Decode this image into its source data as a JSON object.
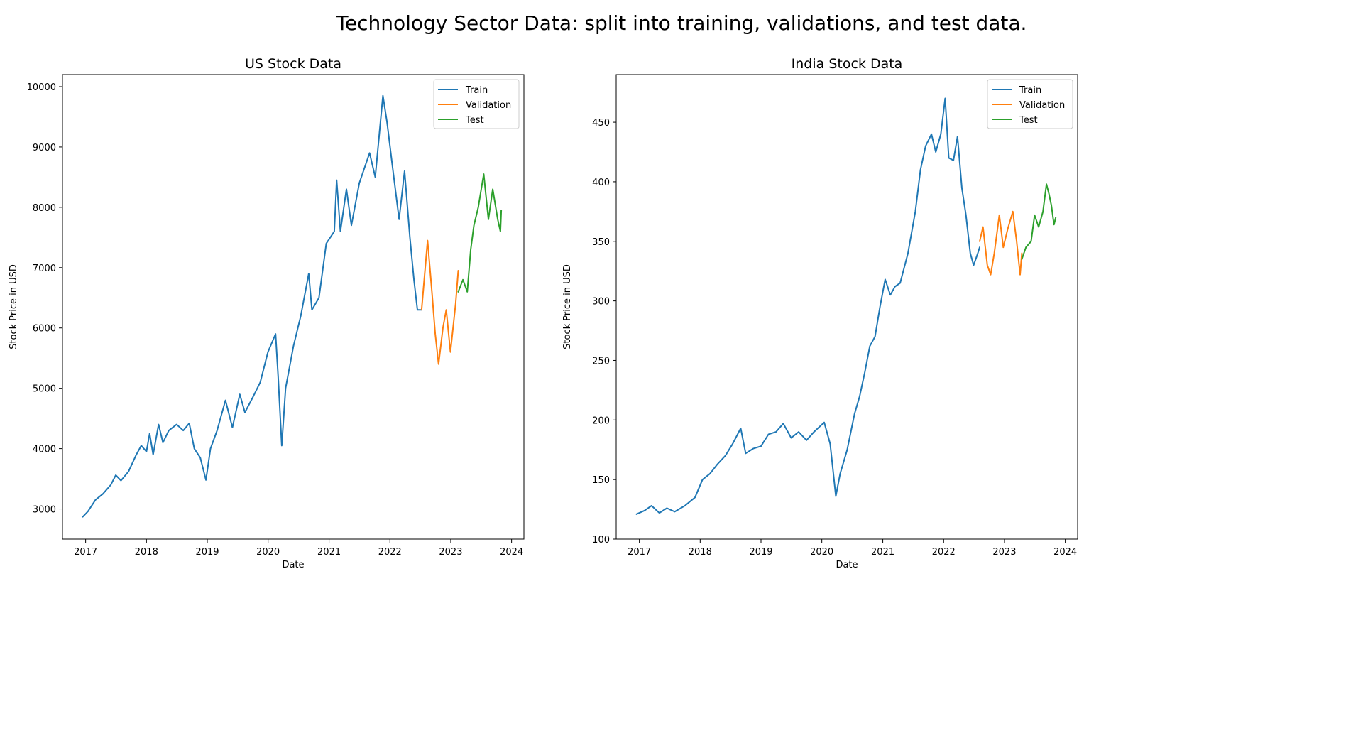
{
  "figure": {
    "title": "Technology Sector Data: split into training, validations, and test data."
  },
  "colors": {
    "Train": "#1f77b4",
    "Validation": "#ff7f0e",
    "Test": "#2ca02c"
  },
  "chart_data": [
    {
      "type": "line",
      "title": "US Stock Data",
      "xlabel": "Date",
      "ylabel": "Stock Price in USD",
      "xlim": [
        "2016-08-15",
        "2024-03-15"
      ],
      "ylim": [
        2500,
        10200
      ],
      "xticks": [
        "2017",
        "2018",
        "2019",
        "2020",
        "2021",
        "2022",
        "2023",
        "2024"
      ],
      "yticks": [
        3000,
        4000,
        5000,
        6000,
        7000,
        8000,
        9000,
        10000
      ],
      "grid": false,
      "legend": "top-right",
      "series": [
        {
          "name": "Train",
          "points": [
            [
              "2016-12-15",
              2870
            ],
            [
              "2017-01-15",
              2960
            ],
            [
              "2017-03-01",
              3150
            ],
            [
              "2017-04-15",
              3250
            ],
            [
              "2017-06-01",
              3400
            ],
            [
              "2017-07-01",
              3560
            ],
            [
              "2017-08-01",
              3470
            ],
            [
              "2017-09-15",
              3620
            ],
            [
              "2017-11-01",
              3900
            ],
            [
              "2017-12-01",
              4050
            ],
            [
              "2018-01-01",
              3950
            ],
            [
              "2018-01-20",
              4250
            ],
            [
              "2018-02-10",
              3900
            ],
            [
              "2018-03-15",
              4400
            ],
            [
              "2018-04-10",
              4100
            ],
            [
              "2018-05-15",
              4300
            ],
            [
              "2018-07-01",
              4400
            ],
            [
              "2018-08-10",
              4300
            ],
            [
              "2018-09-15",
              4420
            ],
            [
              "2018-10-15",
              4000
            ],
            [
              "2018-11-20",
              3850
            ],
            [
              "2018-12-24",
              3480
            ],
            [
              "2019-01-20",
              4000
            ],
            [
              "2019-03-01",
              4300
            ],
            [
              "2019-04-20",
              4800
            ],
            [
              "2019-06-01",
              4350
            ],
            [
              "2019-07-15",
              4900
            ],
            [
              "2019-08-15",
              4600
            ],
            [
              "2019-10-01",
              4850
            ],
            [
              "2019-11-15",
              5100
            ],
            [
              "2019-12-31",
              5600
            ],
            [
              "2020-02-15",
              5900
            ],
            [
              "2020-03-01",
              5200
            ],
            [
              "2020-03-23",
              4050
            ],
            [
              "2020-04-15",
              5000
            ],
            [
              "2020-06-01",
              5700
            ],
            [
              "2020-07-15",
              6200
            ],
            [
              "2020-09-01",
              6900
            ],
            [
              "2020-09-20",
              6300
            ],
            [
              "2020-11-01",
              6500
            ],
            [
              "2020-12-15",
              7400
            ],
            [
              "2021-02-01",
              7600
            ],
            [
              "2021-02-15",
              8450
            ],
            [
              "2021-03-10",
              7600
            ],
            [
              "2021-04-15",
              8300
            ],
            [
              "2021-05-15",
              7700
            ],
            [
              "2021-07-01",
              8400
            ],
            [
              "2021-09-01",
              8900
            ],
            [
              "2021-10-05",
              8500
            ],
            [
              "2021-11-20",
              9850
            ],
            [
              "2021-12-15",
              9400
            ],
            [
              "2022-01-15",
              8700
            ],
            [
              "2022-02-25",
              7800
            ],
            [
              "2022-03-30",
              8600
            ],
            [
              "2022-05-01",
              7500
            ],
            [
              "2022-05-25",
              6800
            ],
            [
              "2022-06-15",
              6300
            ],
            [
              "2022-07-10",
              6300
            ]
          ]
        },
        {
          "name": "Validation",
          "points": [
            [
              "2022-07-10",
              6300
            ],
            [
              "2022-08-15",
              7450
            ],
            [
              "2022-09-10",
              6600
            ],
            [
              "2022-09-30",
              5900
            ],
            [
              "2022-10-20",
              5400
            ],
            [
              "2022-11-15",
              6000
            ],
            [
              "2022-12-05",
              6300
            ],
            [
              "2022-12-30",
              5600
            ],
            [
              "2023-01-30",
              6400
            ],
            [
              "2023-02-15",
              6950
            ]
          ]
        },
        {
          "name": "Test",
          "points": [
            [
              "2023-02-15",
              6600
            ],
            [
              "2023-03-15",
              6800
            ],
            [
              "2023-04-10",
              6600
            ],
            [
              "2023-05-01",
              7300
            ],
            [
              "2023-05-20",
              7700
            ],
            [
              "2023-06-15",
              8000
            ],
            [
              "2023-07-18",
              8550
            ],
            [
              "2023-08-15",
              7800
            ],
            [
              "2023-09-10",
              8300
            ],
            [
              "2023-10-10",
              7800
            ],
            [
              "2023-10-26",
              7600
            ],
            [
              "2023-10-31",
              7950
            ]
          ]
        }
      ]
    },
    {
      "type": "line",
      "title": "India Stock Data",
      "xlabel": "Date",
      "ylabel": "Stock Price in USD",
      "xlim": [
        "2016-08-15",
        "2024-03-15"
      ],
      "ylim": [
        100,
        490
      ],
      "xticks": [
        "2017",
        "2018",
        "2019",
        "2020",
        "2021",
        "2022",
        "2023",
        "2024"
      ],
      "yticks": [
        100,
        150,
        200,
        250,
        300,
        350,
        400,
        450
      ],
      "grid": false,
      "legend": "top-right",
      "series": [
        {
          "name": "Train",
          "points": [
            [
              "2016-12-15",
              121
            ],
            [
              "2017-02-01",
              124
            ],
            [
              "2017-03-15",
              128
            ],
            [
              "2017-05-01",
              122
            ],
            [
              "2017-06-15",
              126
            ],
            [
              "2017-08-01",
              123
            ],
            [
              "2017-10-01",
              128
            ],
            [
              "2017-12-01",
              135
            ],
            [
              "2018-01-15",
              150
            ],
            [
              "2018-03-01",
              155
            ],
            [
              "2018-04-15",
              163
            ],
            [
              "2018-06-01",
              170
            ],
            [
              "2018-07-15",
              180
            ],
            [
              "2018-09-01",
              193
            ],
            [
              "2018-10-01",
              172
            ],
            [
              "2018-11-15",
              176
            ],
            [
              "2019-01-01",
              178
            ],
            [
              "2019-02-15",
              188
            ],
            [
              "2019-04-01",
              190
            ],
            [
              "2019-05-15",
              197
            ],
            [
              "2019-07-01",
              185
            ],
            [
              "2019-08-15",
              190
            ],
            [
              "2019-10-01",
              183
            ],
            [
              "2019-11-15",
              190
            ],
            [
              "2020-01-15",
              198
            ],
            [
              "2020-02-20",
              180
            ],
            [
              "2020-03-25",
              136
            ],
            [
              "2020-04-20",
              155
            ],
            [
              "2020-06-01",
              175
            ],
            [
              "2020-07-15",
              205
            ],
            [
              "2020-08-15",
              220
            ],
            [
              "2020-09-15",
              240
            ],
            [
              "2020-10-15",
              262
            ],
            [
              "2020-11-15",
              270
            ],
            [
              "2020-12-15",
              295
            ],
            [
              "2021-01-15",
              318
            ],
            [
              "2021-02-15",
              305
            ],
            [
              "2021-03-15",
              312
            ],
            [
              "2021-04-15",
              315
            ],
            [
              "2021-06-01",
              340
            ],
            [
              "2021-07-15",
              375
            ],
            [
              "2021-08-15",
              410
            ],
            [
              "2021-09-15",
              430
            ],
            [
              "2021-10-20",
              440
            ],
            [
              "2021-11-15",
              425
            ],
            [
              "2021-12-15",
              440
            ],
            [
              "2022-01-10",
              470
            ],
            [
              "2022-02-01",
              420
            ],
            [
              "2022-03-01",
              418
            ],
            [
              "2022-03-25",
              438
            ],
            [
              "2022-04-20",
              395
            ],
            [
              "2022-05-15",
              372
            ],
            [
              "2022-06-10",
              340
            ],
            [
              "2022-06-30",
              330
            ],
            [
              "2022-07-25",
              340
            ],
            [
              "2022-08-05",
              345
            ]
          ]
        },
        {
          "name": "Validation",
          "points": [
            [
              "2022-08-05",
              350
            ],
            [
              "2022-08-25",
              362
            ],
            [
              "2022-09-20",
              330
            ],
            [
              "2022-10-10",
              322
            ],
            [
              "2022-11-01",
              340
            ],
            [
              "2022-12-01",
              372
            ],
            [
              "2022-12-25",
              345
            ],
            [
              "2023-01-20",
              360
            ],
            [
              "2023-02-20",
              375
            ],
            [
              "2023-03-15",
              350
            ],
            [
              "2023-04-05",
              322
            ],
            [
              "2023-04-15",
              340
            ]
          ]
        },
        {
          "name": "Test",
          "points": [
            [
              "2023-04-15",
              335
            ],
            [
              "2023-05-10",
              345
            ],
            [
              "2023-06-10",
              350
            ],
            [
              "2023-07-01",
              372
            ],
            [
              "2023-07-25",
              362
            ],
            [
              "2023-08-20",
              375
            ],
            [
              "2023-09-10",
              398
            ],
            [
              "2023-09-25",
              390
            ],
            [
              "2023-10-10",
              380
            ],
            [
              "2023-10-25",
              364
            ],
            [
              "2023-11-05",
              370
            ]
          ]
        }
      ]
    }
  ]
}
